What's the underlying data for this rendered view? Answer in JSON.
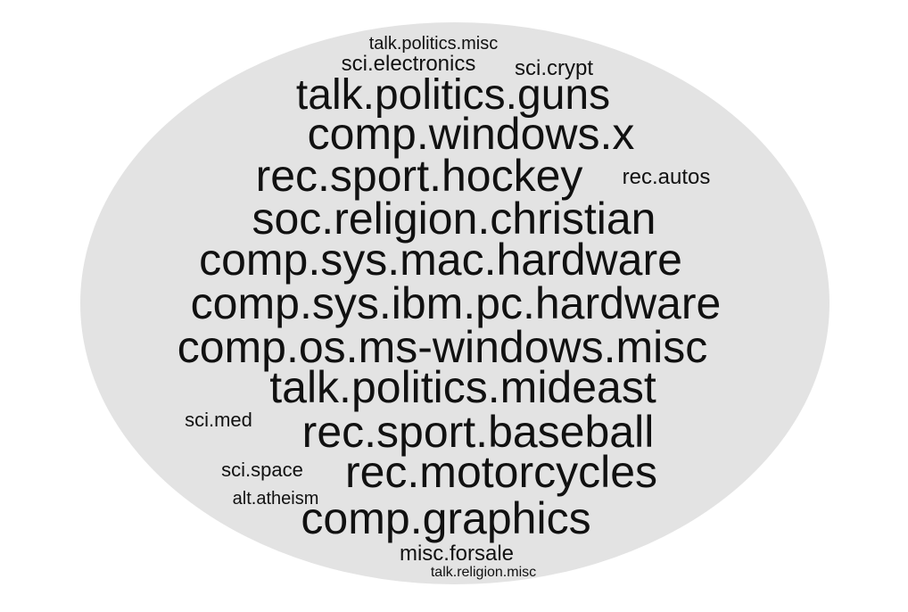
{
  "colors": {
    "background": "#ffffff",
    "ellipse": "#e3e3e3",
    "text": "#111111"
  },
  "words": [
    {
      "text": "talk.politics.misc"
    },
    {
      "text": "sci.electronics"
    },
    {
      "text": "sci.crypt"
    },
    {
      "text": "talk.politics.guns"
    },
    {
      "text": "comp.windows.x"
    },
    {
      "text": "rec.sport.hockey"
    },
    {
      "text": "rec.autos"
    },
    {
      "text": "soc.religion.christian"
    },
    {
      "text": "comp.sys.mac.hardware"
    },
    {
      "text": "comp.sys.ibm.pc.hardware"
    },
    {
      "text": "comp.os.ms-windows.misc"
    },
    {
      "text": "talk.politics.mideast"
    },
    {
      "text": "sci.med"
    },
    {
      "text": "rec.sport.baseball"
    },
    {
      "text": "sci.space"
    },
    {
      "text": "rec.motorcycles"
    },
    {
      "text": "alt.atheism"
    },
    {
      "text": "comp.graphics"
    },
    {
      "text": "misc.forsale"
    },
    {
      "text": "talk.religion.misc"
    }
  ]
}
